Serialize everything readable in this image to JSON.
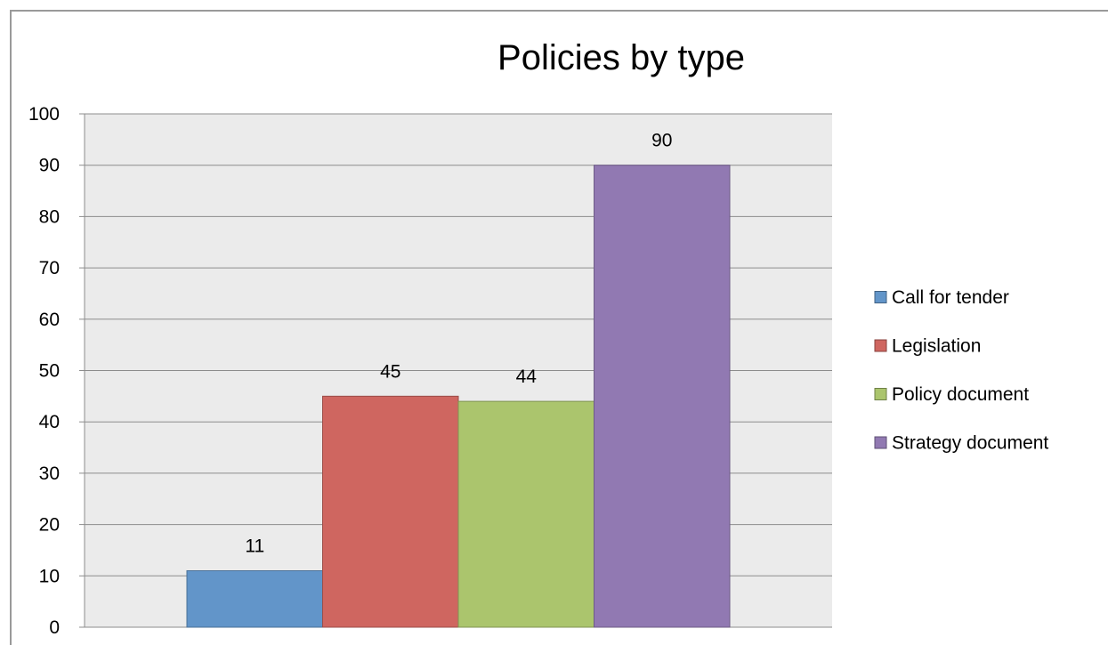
{
  "chart_data": {
    "type": "bar",
    "title": "Policies by type",
    "xlabel": "",
    "ylabel": "",
    "ylim": [
      0,
      100
    ],
    "yticks": [
      0,
      10,
      20,
      30,
      40,
      50,
      60,
      70,
      80,
      90,
      100
    ],
    "grid": true,
    "legend_position": "right",
    "categories": [
      "Call for tender",
      "Legislation",
      "Policy document",
      "Strategy document"
    ],
    "values": [
      11,
      45,
      44,
      90
    ],
    "colors": [
      "#6295c9",
      "#cf6660",
      "#abc56d",
      "#9179b2"
    ],
    "plot_background": "#ebebeb"
  }
}
